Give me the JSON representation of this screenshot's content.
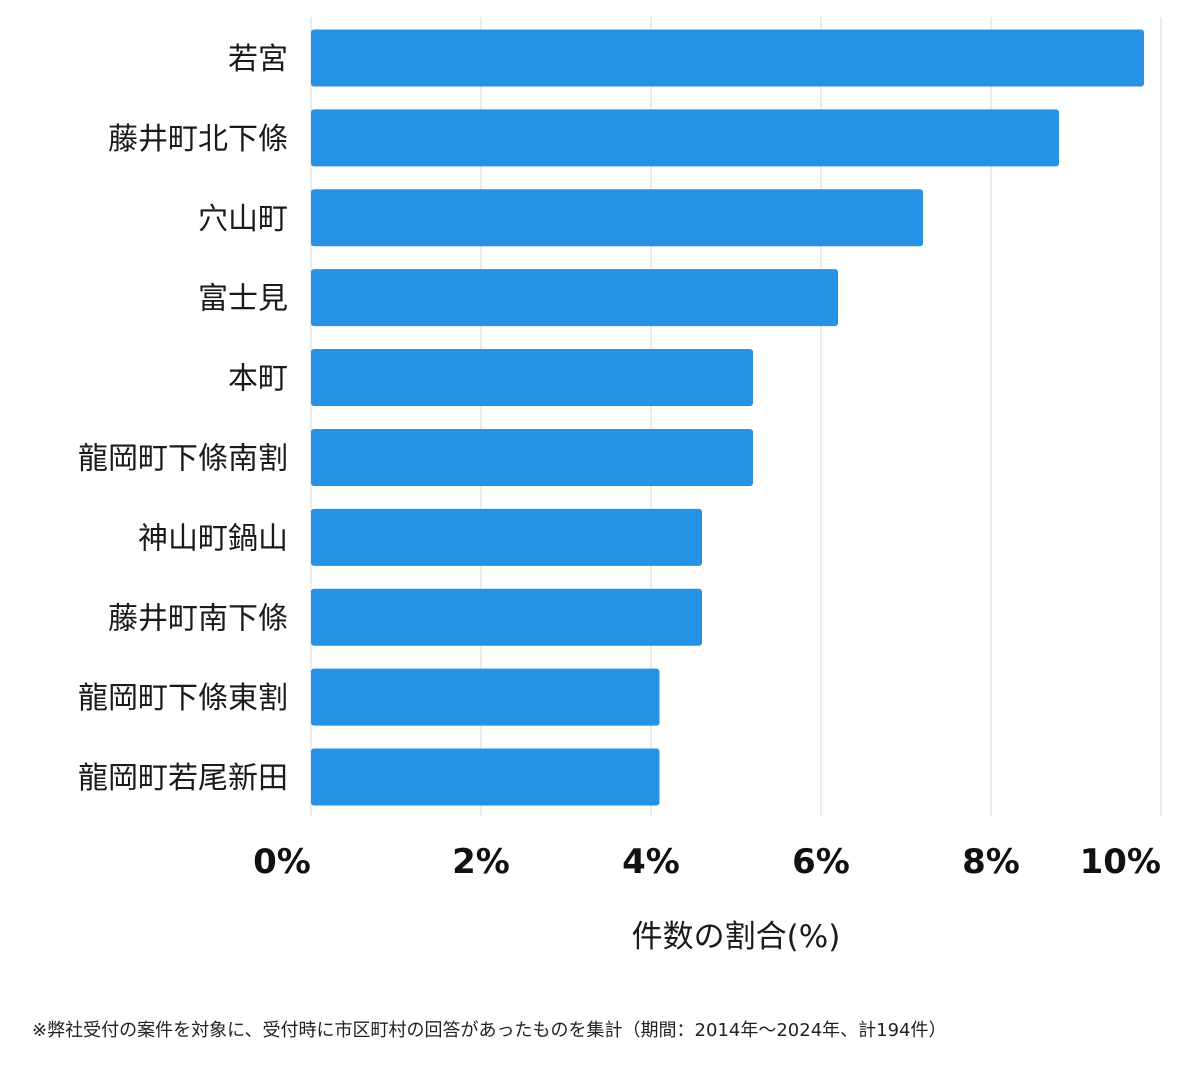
{
  "chart_data": {
    "type": "bar",
    "orientation": "horizontal",
    "categories": [
      "若宮",
      "藤井町北下條",
      "穴山町",
      "富士見",
      "本町",
      "龍岡町下條南割",
      "神山町鍋山",
      "藤井町南下條",
      "龍岡町下條東割",
      "龍岡町若尾新田"
    ],
    "values": [
      9.8,
      8.8,
      7.2,
      6.2,
      5.2,
      5.2,
      4.6,
      4.6,
      4.1,
      4.1
    ],
    "xlabel": "件数の割合(%)",
    "ylabel": "",
    "xlim": [
      0,
      10
    ],
    "ticks": [
      0,
      2,
      4,
      6,
      8,
      10
    ],
    "tick_labels": [
      "0%",
      "2%",
      "4%",
      "6%",
      "8%",
      "10%"
    ],
    "grid": "vertical",
    "bar_color": "#2592e6",
    "grid_color": "#d9d9d9"
  },
  "footnote": "※弊社受付の案件を対象に、受付時に市区町村の回答があったものを集計（期間：2014年～2024年、計194件）"
}
